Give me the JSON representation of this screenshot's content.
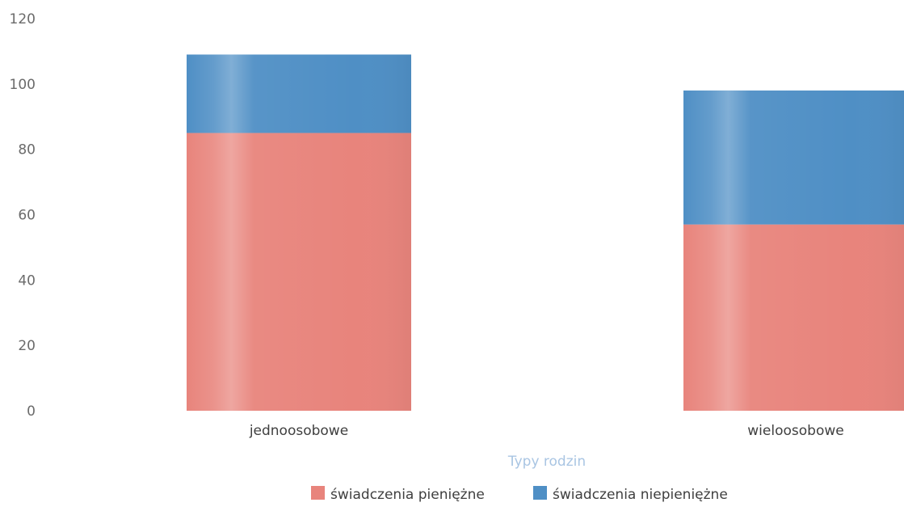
{
  "chart_data": {
    "type": "bar",
    "stacked": true,
    "categories": [
      "jednoosobowe",
      "wieloosobowe"
    ],
    "series": [
      {
        "name": "świadczenia pieniężne",
        "values": [
          85,
          57
        ],
        "color": "#e8847c"
      },
      {
        "name": "świadczenia niepieniężne",
        "values": [
          24,
          41
        ],
        "color": "#4f8fc5"
      }
    ],
    "xlabel": "Typy rodzin",
    "ylabel": "",
    "ylim": [
      0,
      120
    ],
    "yticks": [
      0,
      20,
      40,
      60,
      80,
      100,
      120
    ],
    "grid": false,
    "legend_position": "bottom"
  }
}
